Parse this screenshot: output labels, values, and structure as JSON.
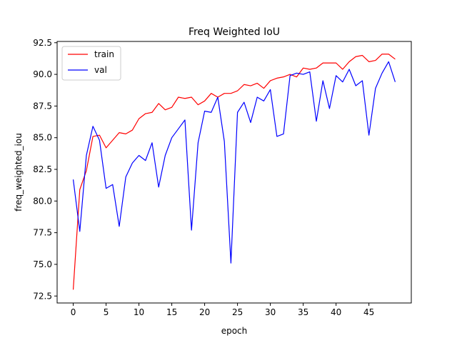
{
  "chart_data": {
    "type": "line",
    "title": "Freq Weighted IoU",
    "xlabel": "epoch",
    "ylabel": "freq_weighted_iou",
    "xlim": [
      -2.45,
      51.45
    ],
    "ylim": [
      71.95,
      92.6
    ],
    "xticks": [
      0,
      5,
      10,
      15,
      20,
      25,
      30,
      35,
      40,
      45
    ],
    "xtick_labels": [
      "0",
      "5",
      "10",
      "15",
      "20",
      "25",
      "30",
      "35",
      "40",
      "45"
    ],
    "yticks": [
      72.5,
      75.0,
      77.5,
      80.0,
      82.5,
      85.0,
      87.5,
      90.0,
      92.5
    ],
    "ytick_labels": [
      "72.5",
      "75.0",
      "77.5",
      "80.0",
      "82.5",
      "85.0",
      "87.5",
      "90.0",
      "92.5"
    ],
    "grid": false,
    "legend_position": "upper-left",
    "x": [
      0,
      1,
      2,
      3,
      4,
      5,
      6,
      7,
      8,
      9,
      10,
      11,
      12,
      13,
      14,
      15,
      16,
      17,
      18,
      19,
      20,
      21,
      22,
      23,
      24,
      25,
      26,
      27,
      28,
      29,
      30,
      31,
      32,
      33,
      34,
      35,
      36,
      37,
      38,
      39,
      40,
      41,
      42,
      43,
      44,
      45,
      46,
      47,
      48,
      49
    ],
    "series": [
      {
        "name": "train",
        "color": "#ff0000",
        "values": [
          73.0,
          80.9,
          82.4,
          85.1,
          85.2,
          84.2,
          84.8,
          85.4,
          85.3,
          85.6,
          86.5,
          86.9,
          87.0,
          87.7,
          87.2,
          87.4,
          88.2,
          88.1,
          88.2,
          87.6,
          87.9,
          88.5,
          88.2,
          88.5,
          88.5,
          88.7,
          89.2,
          89.1,
          89.3,
          88.9,
          89.5,
          89.7,
          89.8,
          90.0,
          89.8,
          90.5,
          90.4,
          90.5,
          90.9,
          90.9,
          90.9,
          90.4,
          91.0,
          91.4,
          91.5,
          91.0,
          91.1,
          91.6,
          91.6,
          91.2
        ]
      },
      {
        "name": "val",
        "color": "#0000ff",
        "values": [
          81.7,
          77.6,
          83.6,
          85.9,
          84.8,
          81.0,
          81.3,
          78.0,
          81.9,
          83.0,
          83.6,
          83.2,
          84.6,
          81.1,
          83.6,
          85.0,
          85.7,
          86.4,
          77.7,
          84.6,
          87.1,
          87.0,
          88.2,
          84.7,
          75.1,
          87.0,
          87.8,
          86.2,
          88.2,
          87.9,
          88.8,
          85.1,
          85.3,
          89.9,
          90.1,
          90.0,
          90.2,
          86.3,
          89.5,
          87.3,
          89.9,
          89.4,
          90.4,
          89.1,
          89.5,
          85.2,
          88.9,
          90.1,
          91.0,
          89.4
        ]
      }
    ]
  }
}
